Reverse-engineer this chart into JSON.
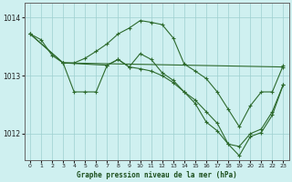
{
  "title": "Graphe pression niveau de la mer (hPa)",
  "bg_color": "#cff0f0",
  "line_color": "#2d6a2d",
  "grid_color": "#9ecfcf",
  "xlim": [
    -0.5,
    23.5
  ],
  "ylim": [
    1011.55,
    1014.25
  ],
  "yticks": [
    1012,
    1013,
    1014
  ],
  "xticks": [
    0,
    1,
    2,
    3,
    4,
    5,
    6,
    7,
    8,
    9,
    10,
    11,
    12,
    13,
    14,
    15,
    16,
    17,
    18,
    19,
    20,
    21,
    22,
    23
  ],
  "series": [
    {
      "x": [
        0,
        1,
        2,
        3,
        4,
        5,
        6,
        7,
        8,
        9,
        10,
        11,
        12,
        13,
        14,
        15,
        16,
        17,
        18,
        19,
        20,
        21,
        22,
        23
      ],
      "y": [
        1013.72,
        1013.62,
        1013.35,
        1013.22,
        1013.22,
        1013.3,
        1013.42,
        1013.55,
        1013.72,
        1013.82,
        1013.95,
        1013.92,
        1013.88,
        1013.65,
        1013.2,
        1013.08,
        1012.95,
        1012.72,
        1012.42,
        1012.12,
        1012.48,
        1012.72,
        1012.72,
        1013.18
      ]
    },
    {
      "x": [
        0,
        3,
        23
      ],
      "y": [
        1013.72,
        1013.22,
        1013.15
      ]
    },
    {
      "x": [
        3,
        7,
        8,
        9,
        10,
        11,
        12,
        13,
        14,
        15,
        16,
        17,
        18,
        19,
        20,
        21,
        22,
        23
      ],
      "y": [
        1013.22,
        1013.18,
        1013.28,
        1013.15,
        1013.12,
        1013.08,
        1013.0,
        1012.88,
        1012.72,
        1012.58,
        1012.38,
        1012.18,
        1011.82,
        1011.78,
        1012.0,
        1012.08,
        1012.38,
        1012.85
      ]
    },
    {
      "x": [
        0,
        3,
        4,
        5,
        6,
        7,
        8,
        9,
        10,
        11,
        12,
        13,
        14,
        15,
        16,
        17,
        18,
        19,
        20,
        21,
        22,
        23
      ],
      "y": [
        1013.72,
        1013.22,
        1012.72,
        1012.72,
        1012.72,
        1013.18,
        1013.28,
        1013.15,
        1013.38,
        1013.28,
        1013.05,
        1012.92,
        1012.72,
        1012.52,
        1012.2,
        1012.05,
        1011.82,
        1011.62,
        1011.95,
        1012.02,
        1012.32,
        1012.85
      ]
    }
  ]
}
